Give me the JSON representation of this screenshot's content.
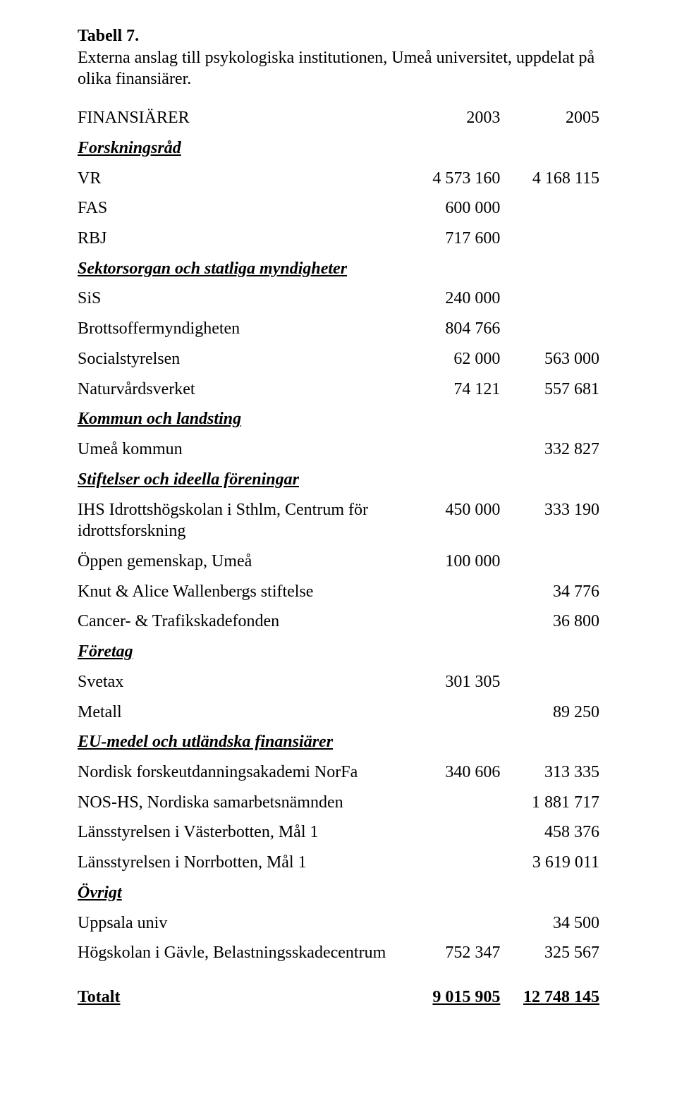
{
  "title": {
    "label": "Tabell 7.",
    "desc": "Externa anslag till psykologiska institutionen, Umeå universitet, uppdelat på olika finansiärer."
  },
  "header": {
    "c0": "FINANSIÄRER",
    "c1": "2003",
    "c2": "2005"
  },
  "sections": {
    "forskningsrad": "Forskningsråd",
    "sektorsorgan": "Sektorsorgan och statliga myndigheter",
    "kommun": "Kommun och landsting",
    "stiftelser": "Stiftelser och ideella föreningar",
    "foretag": "Företag",
    "eu": "EU-medel och utländska finansiärer",
    "ovrigt": "Övrigt"
  },
  "rows": {
    "vr": {
      "label": "VR",
      "v1": "4 573 160",
      "v2": "4 168 115"
    },
    "fas": {
      "label": "FAS",
      "v1": "600 000",
      "v2": ""
    },
    "rbj": {
      "label": "RBJ",
      "v1": "717 600",
      "v2": ""
    },
    "sis": {
      "label": "SiS",
      "v1": "240 000",
      "v2": ""
    },
    "brottsoffer": {
      "label": "Brottsoffermyndigheten",
      "v1": "804 766",
      "v2": ""
    },
    "socialstyrelsen": {
      "label": "Socialstyrelsen",
      "v1": "62 000",
      "v2": "563 000"
    },
    "naturvardsverket": {
      "label": "Naturvårdsverket",
      "v1": "74 121",
      "v2": "557 681"
    },
    "umea": {
      "label": "Umeå kommun",
      "v1": "",
      "v2": "332 827"
    },
    "ihs": {
      "label": "IHS Idrottshögskolan i Sthlm, Centrum för idrottsforskning",
      "v1": "450 000",
      "v2": "333 190"
    },
    "oppen": {
      "label": "Öppen gemenskap, Umeå",
      "v1": "100 000",
      "v2": ""
    },
    "wallenberg": {
      "label": "Knut & Alice Wallenbergs stiftelse",
      "v1": "",
      "v2": "34 776"
    },
    "cancer": {
      "label": "Cancer- & Trafikskadefonden",
      "v1": "",
      "v2": "36 800"
    },
    "svetax": {
      "label": "Svetax",
      "v1": "301 305",
      "v2": ""
    },
    "metall": {
      "label": "Metall",
      "v1": "",
      "v2": "89 250"
    },
    "norfa": {
      "label": "Nordisk forskeutdanningsakademi NorFa",
      "v1": "340 606",
      "v2": "313 335"
    },
    "noshs": {
      "label": "NOS-HS, Nordiska samarbetsnämnden",
      "v1": "",
      "v2": "1 881 717"
    },
    "vasterbotten": {
      "label": "Länsstyrelsen i Västerbotten, Mål 1",
      "v1": "",
      "v2": "458 376"
    },
    "norrbotten": {
      "label": "Länsstyrelsen i Norrbotten, Mål 1",
      "v1": "",
      "v2": "3 619 011"
    },
    "uppsala": {
      "label": "Uppsala univ",
      "v1": "",
      "v2": "34 500"
    },
    "gavle": {
      "label": "Högskolan i Gävle, Belastningsskadecentrum",
      "v1": "752 347",
      "v2": "325 567"
    }
  },
  "total": {
    "label": "Totalt",
    "v1": "9 015 905",
    "v2": "12 748 145"
  }
}
